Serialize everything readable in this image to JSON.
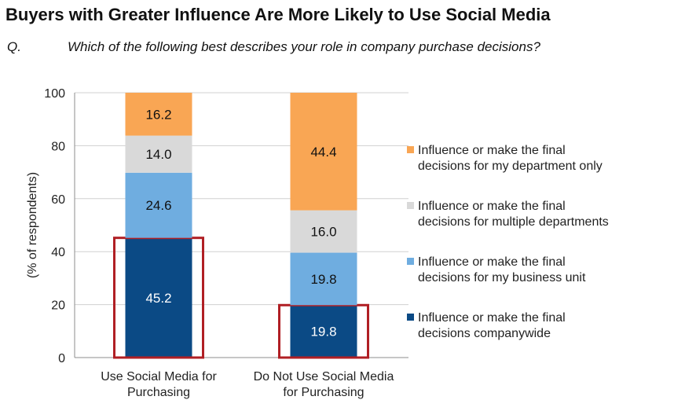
{
  "header": {
    "title": "Buyers with Greater Influence Are More Likely to Use Social Media",
    "question_prefix": "Q.",
    "question": "Which of the following best describes your role in company purchase decisions?"
  },
  "chart_data": {
    "type": "bar",
    "stacked": true,
    "categories": [
      [
        "Use Social Media for",
        "Purchasing"
      ],
      [
        "Do Not Use Social Media",
        "for Purchasing"
      ]
    ],
    "series": [
      {
        "name": "Influence or make the final decisions companywide",
        "values": [
          45.2,
          19.8
        ],
        "color": "#0b4a85",
        "label_color": "#ffffff",
        "highlighted": true
      },
      {
        "name": "Influence or make the final decisions for my business unit",
        "values": [
          24.6,
          19.8
        ],
        "color": "#6fade0",
        "label_color": "#111111"
      },
      {
        "name": "Influence or make the final decisions for multiple departments",
        "values": [
          14.0,
          16.0
        ],
        "color": "#d9d9d9",
        "label_color": "#111111"
      },
      {
        "name": "Influence or make the final decisions for my department only",
        "values": [
          16.2,
          44.4
        ],
        "color": "#f9a654",
        "label_color": "#111111"
      }
    ],
    "legend_lines": [
      [
        "Influence or make the final",
        "decisions for my department only"
      ],
      [
        "Influence or make the final",
        "decisions for multiple departments"
      ],
      [
        "Influence or make the final",
        "decisions for my business unit"
      ],
      [
        "Influence or make the final",
        "decisions companywide"
      ]
    ],
    "ylabel": "(% of respondents)",
    "ylim": [
      0,
      100
    ],
    "yticks": [
      0,
      20,
      40,
      60,
      80,
      100
    ],
    "grid": true,
    "legend_position": "right",
    "highlight_color": "#b01f24"
  }
}
